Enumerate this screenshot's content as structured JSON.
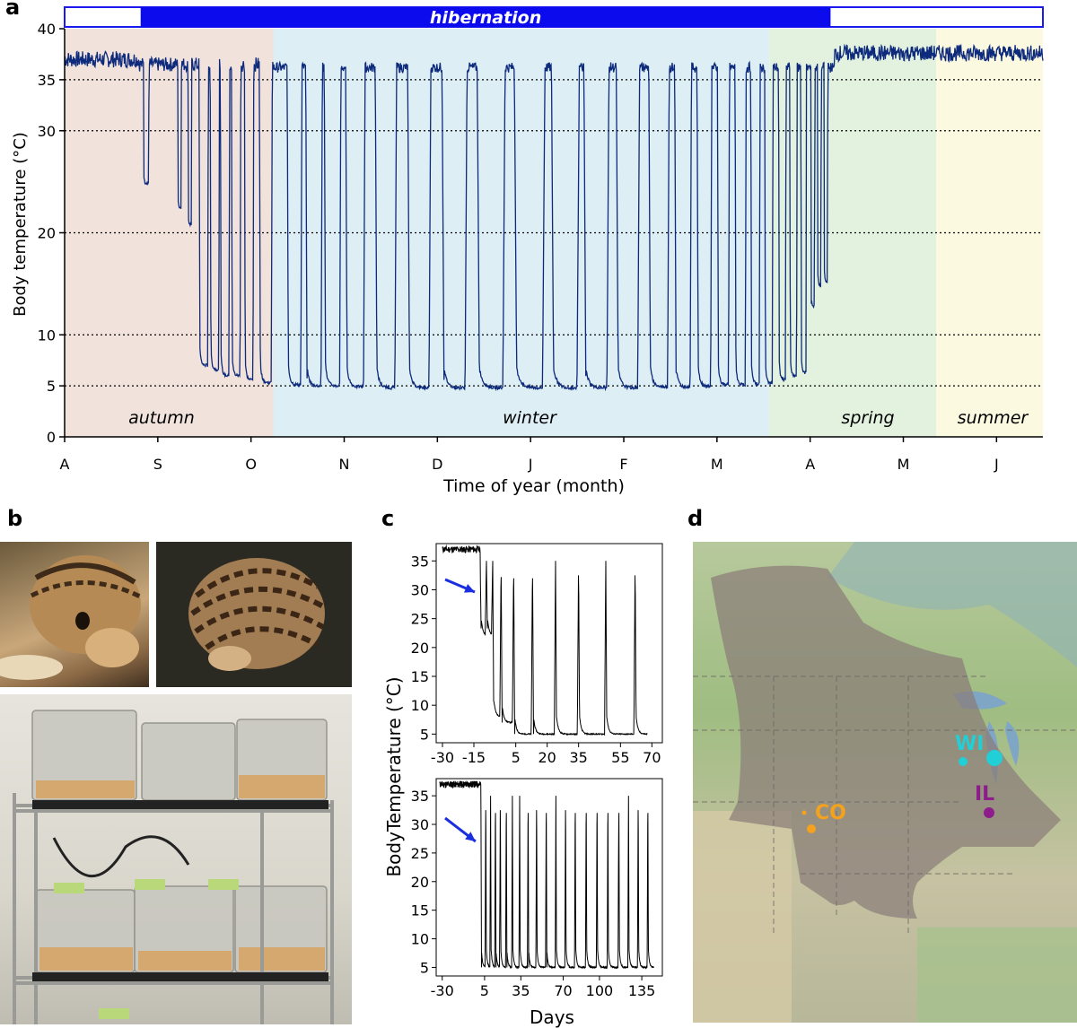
{
  "panels": {
    "a": "a",
    "b": "b",
    "c": "c",
    "d": "d"
  },
  "chart_data": [
    {
      "panel": "a",
      "type": "line",
      "title": "",
      "xlabel": "Time of year (month)",
      "ylabel": "Body temperature (°C)",
      "x_ticks": [
        "A",
        "S",
        "O",
        "N",
        "D",
        "J",
        "F",
        "M",
        "A",
        "M",
        "J"
      ],
      "y_ticks": [
        0,
        5,
        10,
        20,
        30,
        35,
        40
      ],
      "ylim": [
        0,
        40
      ],
      "hibernation_label": "hibernation",
      "seasons": [
        {
          "name": "autumn",
          "start_month": 0,
          "end_month": 2.25,
          "color": "#f1e3dc"
        },
        {
          "name": "winter",
          "start_month": 2.25,
          "end_month": 7.6,
          "color": "#ddeef5"
        },
        {
          "name": "spring",
          "start_month": 7.6,
          "end_month": 9.4,
          "color": "#e2f2df"
        },
        {
          "name": "summer",
          "start_month": 9.4,
          "end_month": 10.6,
          "color": "#fbf9e0"
        }
      ],
      "hibernation_bar": {
        "start_month": 0.82,
        "end_month": 8.26
      },
      "series_color": "#0d2a7c",
      "torpor_bouts": [
        {
          "month": 0.85,
          "min": 24.8,
          "width": 0.06
        },
        {
          "month": 1.22,
          "min": 22.5,
          "width": 0.04
        },
        {
          "month": 1.33,
          "min": 20.8,
          "width": 0.04
        },
        {
          "month": 1.45,
          "min": 7.0,
          "width": 0.1
        },
        {
          "month": 1.57,
          "min": 6.6,
          "width": 0.1
        },
        {
          "month": 1.68,
          "min": 6.0,
          "width": 0.1
        },
        {
          "month": 1.8,
          "min": 6.0,
          "width": 0.1
        },
        {
          "month": 1.94,
          "min": 5.6,
          "width": 0.1
        },
        {
          "month": 2.1,
          "min": 5.3,
          "width": 0.14
        },
        {
          "month": 2.4,
          "min": 5.1,
          "width": 0.16
        },
        {
          "month": 2.6,
          "min": 5.0,
          "width": 0.18
        },
        {
          "month": 2.8,
          "min": 5.0,
          "width": 0.18
        },
        {
          "month": 3.03,
          "min": 4.9,
          "width": 0.21
        },
        {
          "month": 3.35,
          "min": 4.8,
          "width": 0.23
        },
        {
          "month": 3.7,
          "min": 4.8,
          "width": 0.25
        },
        {
          "month": 4.07,
          "min": 4.8,
          "width": 0.27
        },
        {
          "month": 4.45,
          "min": 4.8,
          "width": 0.3
        },
        {
          "month": 4.85,
          "min": 4.8,
          "width": 0.33
        },
        {
          "month": 5.25,
          "min": 4.8,
          "width": 0.3
        },
        {
          "month": 5.6,
          "min": 4.8,
          "width": 0.27
        },
        {
          "month": 5.95,
          "min": 4.8,
          "width": 0.25
        },
        {
          "month": 6.3,
          "min": 4.9,
          "width": 0.22
        },
        {
          "month": 6.58,
          "min": 4.9,
          "width": 0.18
        },
        {
          "month": 6.82,
          "min": 5.0,
          "width": 0.16
        },
        {
          "month": 7.04,
          "min": 5.1,
          "width": 0.13
        },
        {
          "month": 7.23,
          "min": 5.1,
          "width": 0.12
        },
        {
          "month": 7.4,
          "min": 5.2,
          "width": 0.1
        },
        {
          "month": 7.55,
          "min": 5.3,
          "width": 0.09
        },
        {
          "month": 7.7,
          "min": 5.6,
          "width": 0.08
        },
        {
          "month": 7.82,
          "min": 6.0,
          "width": 0.08
        },
        {
          "month": 7.94,
          "min": 6.3,
          "width": 0.06
        },
        {
          "month": 8.05,
          "min": 12.8,
          "width": 0.04
        },
        {
          "month": 8.12,
          "min": 14.8,
          "width": 0.04
        },
        {
          "month": 8.19,
          "min": 15.2,
          "width": 0.04
        }
      ]
    },
    {
      "panel": "c-top",
      "type": "line",
      "xlabel": "",
      "ylabel": "BodyTemperature (°C)",
      "x_ticks": [
        -30,
        -15,
        5,
        20,
        35,
        55,
        70
      ],
      "y_ticks": [
        5,
        10,
        15,
        20,
        25,
        30,
        35
      ],
      "xlim": [
        -33,
        75
      ],
      "ylim": [
        3.5,
        38
      ],
      "line_color": "#000000",
      "arrow_color": "#1a2fe0",
      "bouts": [
        -12,
        -9,
        -6,
        -2,
        4,
        13,
        24,
        35,
        48,
        62
      ]
    },
    {
      "panel": "c-bottom",
      "type": "line",
      "xlabel": "Days",
      "ylabel": "BodyTemperature (°C)",
      "x_ticks": [
        -30,
        5,
        35,
        70,
        100,
        135
      ],
      "y_ticks": [
        5,
        10,
        15,
        20,
        25,
        30,
        35
      ],
      "xlim": [
        -35,
        152
      ],
      "ylim": [
        3.5,
        38
      ],
      "line_color": "#000000",
      "arrow_color": "#1a2fe0",
      "bouts": [
        2,
        6,
        10,
        14,
        18,
        23,
        28,
        34,
        41,
        48,
        56,
        64,
        72,
        80,
        89,
        98,
        107,
        116,
        124,
        132,
        140
      ]
    }
  ],
  "season_labels": {
    "autumn": "autumn",
    "winter": "winter",
    "spring": "spring",
    "summer": "summer"
  },
  "photos": {
    "squirrel_closeup": "13-lined ground squirrel photo",
    "squirrel_curled": "curled hibernating squirrel photo",
    "cages": "animal cages on rack photo"
  },
  "map": {
    "labels": [
      {
        "text": "WI",
        "color": "#22cfd6"
      },
      {
        "text": "IL",
        "color": "#8e1d8c"
      },
      {
        "text": "CO",
        "color": "#f4a21d"
      }
    ]
  }
}
